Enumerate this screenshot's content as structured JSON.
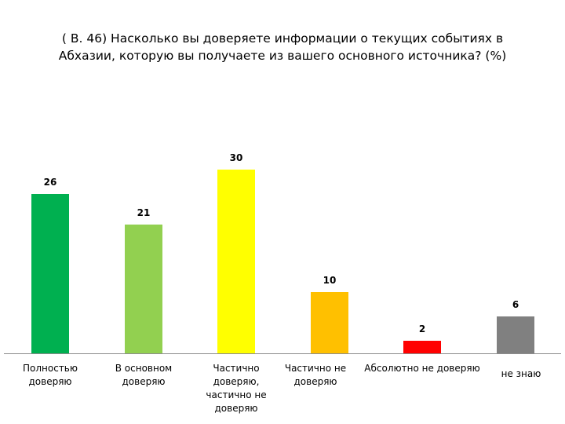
{
  "title": {
    "line1": "( В. 46)  Насколько вы доверяете информации о текущих событиях в",
    "line2": "Абхазии, которую вы получаете из вашего основного источника? (%)"
  },
  "chart_data": {
    "type": "bar",
    "title": "( В. 46)  Насколько вы доверяете информации о текущих событиях в Абхазии, которую вы получаете из вашего основного источника? (%)",
    "categories": [
      "Полностью доверяю",
      "В основном доверяю",
      "Частично доверяю, частично не доверяю",
      "Частично не доверяю",
      "Абсолютно не доверяю",
      "не знаю"
    ],
    "values": [
      26,
      21,
      30,
      10,
      2,
      6
    ],
    "colors": [
      "#00b050",
      "#92d050",
      "#ffff00",
      "#ffc000",
      "#ff0000",
      "#808080"
    ],
    "xlabel": "",
    "ylabel": "",
    "ylim": [
      0,
      30
    ],
    "grid": false,
    "legend": "none",
    "data_labels": true
  },
  "bars": [
    {
      "label_lines": [
        "Полностью",
        "доверяю"
      ],
      "value": "26",
      "color": "#00b050"
    },
    {
      "label_lines": [
        "В основном",
        "доверяю"
      ],
      "value": "21",
      "color": "#92d050"
    },
    {
      "label_lines": [
        "Частично",
        "доверяю,",
        "частично не",
        "доверяю"
      ],
      "value": "30",
      "color": "#ffff00"
    },
    {
      "label_lines": [
        "Частично не",
        "доверяю"
      ],
      "value": "10",
      "color": "#ffc000"
    },
    {
      "label_lines": [
        "Абсолютно не доверяю"
      ],
      "value": "2",
      "color": "#ff0000"
    },
    {
      "label_lines": [
        "не знаю"
      ],
      "value": "6",
      "color": "#808080"
    }
  ]
}
